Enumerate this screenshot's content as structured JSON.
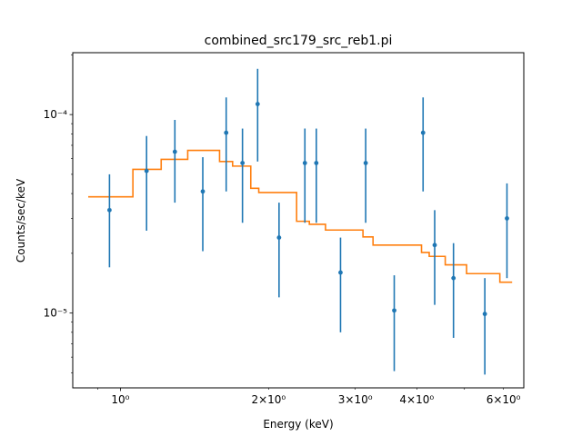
{
  "chart_data": {
    "type": "scatter",
    "title": "combined_src179_src_reb1.pi",
    "xlabel": "Energy (keV)",
    "ylabel": "Counts/sec/keV",
    "xscale": "log",
    "yscale": "log",
    "xlim": [
      0.8,
      6.6
    ],
    "ylim": [
      4.2e-06,
      0.000205
    ],
    "grid": false,
    "x_major_ticks": [
      {
        "value": 1,
        "label": "10⁰"
      }
    ],
    "x_minor_ticks": [
      {
        "value": 2,
        "label": "2×10⁰"
      },
      {
        "value": 3,
        "label": "3×10⁰"
      },
      {
        "value": 4,
        "label": "4×10⁰"
      },
      {
        "value": 6,
        "label": "6×10⁰"
      },
      {
        "value": 5,
        "label": ""
      },
      {
        "value": 0.9,
        "label": ""
      }
    ],
    "y_major_ticks": [
      {
        "value": 0.0001,
        "label": "10⁻⁴"
      },
      {
        "value": 1e-05,
        "label": "10⁻⁵"
      }
    ],
    "data_color": "#1f77b4",
    "model_color": "#ff7f0e",
    "data_points": [
      {
        "x": 0.95,
        "y": 3.3e-05,
        "ylow": 1.7e-05,
        "yhigh": 5e-05
      },
      {
        "x": 1.13,
        "y": 5.2e-05,
        "ylow": 2.6e-05,
        "yhigh": 7.8e-05
      },
      {
        "x": 1.29,
        "y": 6.5e-05,
        "ylow": 3.6e-05,
        "yhigh": 9.4e-05
      },
      {
        "x": 1.47,
        "y": 4.1e-05,
        "ylow": 2.05e-05,
        "yhigh": 6.1e-05
      },
      {
        "x": 1.64,
        "y": 8.1e-05,
        "ylow": 4.1e-05,
        "yhigh": 0.000122
      },
      {
        "x": 1.77,
        "y": 5.7e-05,
        "ylow": 2.85e-05,
        "yhigh": 8.5e-05
      },
      {
        "x": 1.9,
        "y": 0.000113,
        "ylow": 5.8e-05,
        "yhigh": 0.00017
      },
      {
        "x": 2.1,
        "y": 2.4e-05,
        "ylow": 1.2e-05,
        "yhigh": 3.6e-05
      },
      {
        "x": 2.37,
        "y": 5.7e-05,
        "ylow": 2.85e-05,
        "yhigh": 8.5e-05
      },
      {
        "x": 2.5,
        "y": 5.7e-05,
        "ylow": 2.85e-05,
        "yhigh": 8.5e-05
      },
      {
        "x": 2.8,
        "y": 1.6e-05,
        "ylow": 8e-06,
        "yhigh": 2.4e-05
      },
      {
        "x": 3.15,
        "y": 5.7e-05,
        "ylow": 2.85e-05,
        "yhigh": 8.5e-05
      },
      {
        "x": 3.6,
        "y": 1.03e-05,
        "ylow": 5.1e-06,
        "yhigh": 1.55e-05
      },
      {
        "x": 4.12,
        "y": 8.1e-05,
        "ylow": 4.1e-05,
        "yhigh": 0.000122
      },
      {
        "x": 4.35,
        "y": 2.2e-05,
        "ylow": 1.1e-05,
        "yhigh": 3.3e-05
      },
      {
        "x": 4.75,
        "y": 1.5e-05,
        "ylow": 7.5e-06,
        "yhigh": 2.25e-05
      },
      {
        "x": 5.5,
        "y": 9.9e-06,
        "ylow": 4.9e-06,
        "yhigh": 1.5e-05
      },
      {
        "x": 6.1,
        "y": 3e-05,
        "ylow": 1.5e-05,
        "yhigh": 4.5e-05
      }
    ],
    "model_steps": [
      {
        "x0": 0.86,
        "x1": 1.06,
        "y": 3.85e-05
      },
      {
        "x0": 1.06,
        "x1": 1.21,
        "y": 5.3e-05
      },
      {
        "x0": 1.21,
        "x1": 1.37,
        "y": 5.95e-05
      },
      {
        "x0": 1.37,
        "x1": 1.59,
        "y": 6.6e-05
      },
      {
        "x0": 1.59,
        "x1": 1.69,
        "y": 5.8e-05
      },
      {
        "x0": 1.69,
        "x1": 1.84,
        "y": 5.5e-05
      },
      {
        "x0": 1.84,
        "x1": 1.91,
        "y": 4.25e-05
      },
      {
        "x0": 1.91,
        "x1": 2.28,
        "y": 4.05e-05
      },
      {
        "x0": 2.28,
        "x1": 2.42,
        "y": 2.9e-05
      },
      {
        "x0": 2.42,
        "x1": 2.61,
        "y": 2.8e-05
      },
      {
        "x0": 2.61,
        "x1": 3.11,
        "y": 2.62e-05
      },
      {
        "x0": 3.11,
        "x1": 3.26,
        "y": 2.42e-05
      },
      {
        "x0": 3.26,
        "x1": 4.09,
        "y": 2.2e-05
      },
      {
        "x0": 4.09,
        "x1": 4.24,
        "y": 2.02e-05
      },
      {
        "x0": 4.24,
        "x1": 4.57,
        "y": 1.93e-05
      },
      {
        "x0": 4.57,
        "x1": 5.05,
        "y": 1.75e-05
      },
      {
        "x0": 5.05,
        "x1": 5.9,
        "y": 1.58e-05
      },
      {
        "x0": 5.9,
        "x1": 6.25,
        "y": 1.43e-05
      }
    ]
  }
}
